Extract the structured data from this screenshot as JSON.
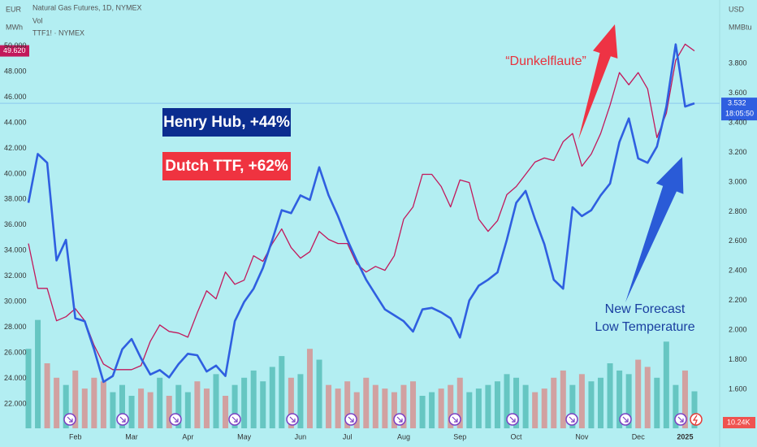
{
  "chart_data": {
    "type": "line",
    "title": "Natural Gas Futures, 1D, NYMEX",
    "volume_label": "Vol",
    "compare_label": "TTF1! · NYMEX",
    "left_units": [
      "EUR",
      "MWh"
    ],
    "right_units": [
      "USD",
      "MMBtu"
    ],
    "countdown": "18:05:50",
    "categories": [
      null,
      null,
      null,
      null,
      null,
      "Feb",
      null,
      null,
      null,
      null,
      null,
      "Mar",
      null,
      null,
      null,
      null,
      null,
      "Apr",
      null,
      null,
      null,
      null,
      null,
      "May",
      null,
      null,
      null,
      null,
      null,
      "Jun",
      null,
      null,
      null,
      null,
      "Jul",
      null,
      null,
      null,
      null,
      null,
      "Aug",
      null,
      null,
      null,
      null,
      null,
      "Sep",
      null,
      null,
      null,
      null,
      null,
      "Oct",
      null,
      null,
      null,
      null,
      null,
      null,
      "Nov",
      null,
      null,
      null,
      null,
      null,
      "Dec",
      null,
      null,
      null,
      null,
      "2025",
      null
    ],
    "ylim": [
      19.9,
      53.6
    ],
    "yticks": [
      {
        "value": 22,
        "label": "22.000"
      },
      {
        "value": 24,
        "label": "24.000"
      },
      {
        "value": 26,
        "label": "26.000"
      },
      {
        "value": 28,
        "label": "28.000"
      },
      {
        "value": 30,
        "label": "30.000"
      },
      {
        "value": 32,
        "label": "32.000"
      },
      {
        "value": 34,
        "label": "34.000"
      },
      {
        "value": 36,
        "label": "36.000"
      },
      {
        "value": 38,
        "label": "38.000"
      },
      {
        "value": 40,
        "label": "40.000"
      },
      {
        "value": 42,
        "label": "42.000"
      },
      {
        "value": 44,
        "label": "44.000"
      },
      {
        "value": 46,
        "label": "46.000"
      },
      {
        "value": 48,
        "label": "48.000"
      },
      {
        "value": 50,
        "label": "50.000"
      }
    ],
    "y2lim": [
      1.32,
      4.23
    ],
    "y2ticks": [
      {
        "value": 1.6,
        "label": "1.600"
      },
      {
        "value": 1.8,
        "label": "1.800"
      },
      {
        "value": 2.0,
        "label": "2.000"
      },
      {
        "value": 2.2,
        "label": "2.200"
      },
      {
        "value": 2.4,
        "label": "2.400"
      },
      {
        "value": 2.6,
        "label": "2.600"
      },
      {
        "value": 2.8,
        "label": "2.800"
      },
      {
        "value": 3.0,
        "label": "3.000"
      },
      {
        "value": 3.2,
        "label": "3.200"
      },
      {
        "value": 3.4,
        "label": "3.400"
      },
      {
        "value": 3.6,
        "label": "3.600"
      },
      {
        "value": 3.8,
        "label": "3.800"
      }
    ],
    "series": [
      {
        "name": "Henry Hub, +44%",
        "color": "#2f5fe0",
        "label_color": "#0b2d8f",
        "axis": "y2",
        "last_label": "3.532",
        "values": [
          2.86,
          3.19,
          3.13,
          2.47,
          2.61,
          2.08,
          2.06,
          1.87,
          1.65,
          1.69,
          1.87,
          1.94,
          1.81,
          1.7,
          1.73,
          1.68,
          1.77,
          1.84,
          1.83,
          1.72,
          1.76,
          1.69,
          2.06,
          2.19,
          2.28,
          2.42,
          2.61,
          2.81,
          2.79,
          2.91,
          2.88,
          3.1,
          2.91,
          2.77,
          2.61,
          2.47,
          2.34,
          2.24,
          2.14,
          2.1,
          2.06,
          1.99,
          2.14,
          2.15,
          2.12,
          2.08,
          1.95,
          2.2,
          2.3,
          2.34,
          2.39,
          2.61,
          2.86,
          2.94,
          2.75,
          2.58,
          2.34,
          2.28,
          2.83,
          2.77,
          2.81,
          2.91,
          2.99,
          3.27,
          3.43,
          3.16,
          3.13,
          3.24,
          3.51,
          3.93,
          3.51,
          3.532
        ]
      },
      {
        "name": "Dutch TTF, +62%",
        "color": "#c2185b",
        "label_color": "#ef3340",
        "last_label": "49.620",
        "values": [
          34.55,
          31.04,
          31.04,
          28.5,
          28.82,
          29.45,
          28.5,
          26.59,
          25.12,
          24.68,
          24.68,
          24.68,
          24.99,
          26.9,
          28.18,
          27.67,
          27.54,
          27.22,
          29.13,
          30.85,
          30.22,
          32.32,
          31.36,
          31.68,
          33.59,
          33.15,
          34.55,
          35.69,
          34.23,
          33.4,
          33.91,
          35.5,
          34.87,
          34.55,
          34.55,
          32.96,
          32.32,
          32.76,
          32.45,
          33.59,
          36.46,
          37.41,
          39.96,
          39.96,
          39.01,
          37.41,
          39.52,
          39.32,
          36.46,
          35.5,
          36.33,
          38.37,
          39.01,
          39.96,
          40.92,
          41.24,
          41.04,
          42.51,
          43.15,
          40.6,
          41.55,
          43.15,
          45.38,
          47.92,
          46.97,
          47.92,
          46.65,
          42.83,
          44.74,
          48.88,
          50.15,
          49.62
        ]
      }
    ],
    "volume": {
      "vol_ylim": [
        0,
        45
      ],
      "up_color": "rgba(38,166,154,0.55)",
      "down_color": "rgba(239,83,80,0.5)",
      "values": [
        22,
        30,
        18,
        14,
        12,
        16,
        11,
        14,
        13,
        10,
        12,
        9,
        11,
        10,
        14,
        9,
        12,
        10,
        13,
        11,
        15,
        9,
        12,
        14,
        16,
        13,
        17,
        20,
        14,
        15,
        22,
        19,
        12,
        11,
        13,
        10,
        14,
        12,
        11,
        10,
        12,
        13,
        9,
        10,
        11,
        12,
        14,
        10,
        11,
        12,
        13,
        15,
        14,
        12,
        10,
        11,
        14,
        16,
        12,
        15,
        13,
        14,
        18,
        16,
        15,
        19,
        17,
        14,
        24,
        12,
        16,
        10.24
      ],
      "value_labels": {
        "71": "10.24K"
      }
    },
    "annotations": [
      {
        "text": "“Dunkelflaute”",
        "color": "#e8323c"
      },
      {
        "text": "New Forecast",
        "color": "#1a3fa0"
      },
      {
        "text": "Low Temperature",
        "color": "#1a3fa0"
      }
    ]
  }
}
